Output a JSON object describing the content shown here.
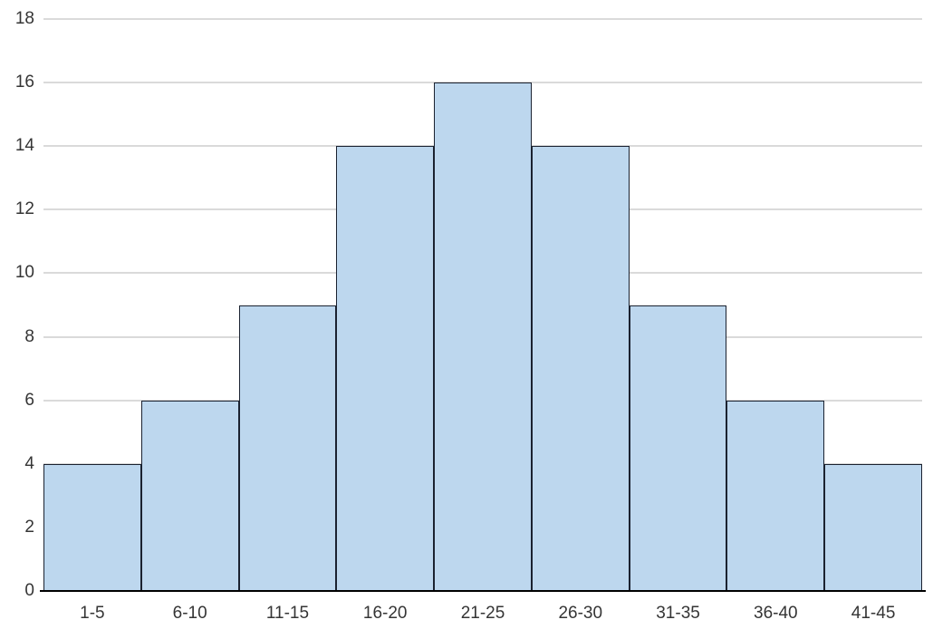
{
  "chart_data": {
    "type": "bar",
    "subtype": "histogram",
    "title": "",
    "xlabel": "",
    "ylabel": "",
    "categories": [
      "1-5",
      "6-10",
      "11-15",
      "16-20",
      "21-25",
      "26-30",
      "31-35",
      "36-40",
      "41-45"
    ],
    "values": [
      4,
      6,
      9,
      14,
      16,
      14,
      9,
      6,
      4
    ],
    "ylim": [
      0,
      18
    ],
    "ytick_step": 2,
    "ytick_labels": [
      "0",
      "2",
      "4",
      "6",
      "8",
      "10",
      "12",
      "14",
      "16",
      "18"
    ],
    "grid": true,
    "legend": false,
    "colors": {
      "bar_fill": "#bdd7ee",
      "bar_border": "#1b2230",
      "gridline": "#dadada",
      "axis_line": "#000000",
      "label_text": "#353535",
      "background": "#ffffff"
    }
  }
}
